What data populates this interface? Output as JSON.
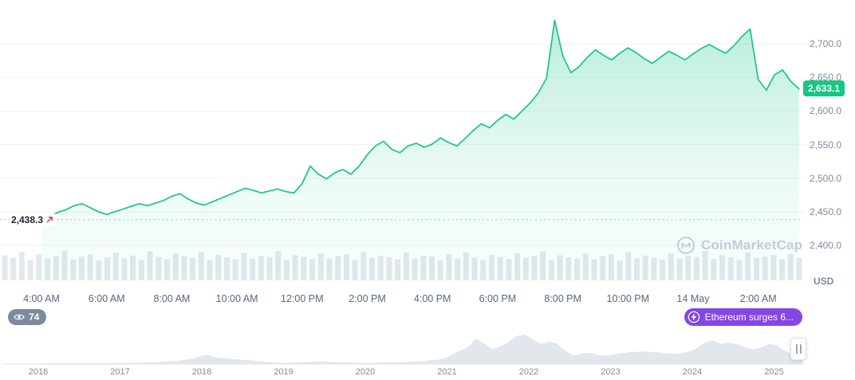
{
  "colors": {
    "green": "#16c784",
    "red": "#ea3943",
    "purple": "#8247e5",
    "grid": "#eff2f5",
    "dotted_line": "#b7c0cc",
    "volume": "#e3e8ee",
    "timeline_fill": "#e2e7ed",
    "watermark": "#c3cdd9"
  },
  "annotations": {
    "open_price_label": "2,438.3",
    "last_price_label": "2,633.1",
    "watermark_text": "CoinMarketCap",
    "annotation_count": "74",
    "news_badge_text": "Ethereum surges 6..."
  },
  "chart_data": [
    {
      "type": "area",
      "name": "eth-intraday-price",
      "unit": "USD",
      "grid": true,
      "legend": false,
      "ylim": [
        2390,
        2745
      ],
      "open": 2438.3,
      "last": 2633.1,
      "y_tick_labels": [
        "2,700.0",
        "2,650.0",
        "2,600.0",
        "2,550.0",
        "2,500.0",
        "2,450.0",
        "2,400.0"
      ],
      "x_tick_labels": [
        "4:00 AM",
        "6:00 AM",
        "8:00 AM",
        "10:00 AM",
        "12:00 PM",
        "2:00 PM",
        "4:00 PM",
        "6:00 PM",
        "8:00 PM",
        "10:00 PM",
        "14 May",
        "2:00 AM"
      ],
      "x_hours": [
        4,
        4.25,
        4.5,
        4.75,
        5,
        5.25,
        5.5,
        5.75,
        6,
        6.25,
        6.5,
        6.75,
        7,
        7.25,
        7.5,
        7.75,
        8,
        8.25,
        8.5,
        8.75,
        9,
        9.25,
        9.5,
        9.75,
        10,
        10.25,
        10.5,
        10.75,
        11,
        11.25,
        11.5,
        11.75,
        12,
        12.25,
        12.5,
        12.75,
        13,
        13.25,
        13.5,
        13.75,
        14,
        14.25,
        14.5,
        14.75,
        15,
        15.25,
        15.5,
        15.75,
        16,
        16.25,
        16.5,
        16.75,
        17,
        17.25,
        17.5,
        17.75,
        18,
        18.25,
        18.5,
        18.75,
        19,
        19.25,
        19.5,
        19.75,
        20,
        20.25,
        20.5,
        20.75,
        21,
        21.25,
        21.5,
        21.75,
        22,
        22.25,
        22.5,
        22.75,
        23,
        23.25,
        23.5,
        23.75,
        24,
        24.25,
        24.5,
        24.75,
        25,
        25.25,
        25.5,
        25.75,
        26,
        26.25,
        26.5,
        26.75,
        27,
        27.25
      ],
      "prices": [
        2438,
        2444,
        2449,
        2453,
        2459,
        2462,
        2456,
        2450,
        2446,
        2450,
        2454,
        2458,
        2462,
        2459,
        2463,
        2467,
        2473,
        2477,
        2469,
        2463,
        2460,
        2465,
        2470,
        2475,
        2480,
        2485,
        2482,
        2478,
        2481,
        2484,
        2480,
        2478,
        2492,
        2518,
        2506,
        2499,
        2508,
        2513,
        2506,
        2518,
        2535,
        2548,
        2555,
        2543,
        2538,
        2548,
        2552,
        2546,
        2551,
        2560,
        2553,
        2548,
        2559,
        2571,
        2581,
        2575,
        2586,
        2595,
        2588,
        2600,
        2612,
        2627,
        2649,
        2735,
        2682,
        2657,
        2666,
        2680,
        2691,
        2683,
        2676,
        2686,
        2694,
        2687,
        2678,
        2671,
        2680,
        2689,
        2683,
        2676,
        2685,
        2693,
        2699,
        2692,
        2686,
        2697,
        2711,
        2722,
        2647,
        2631,
        2654,
        2661,
        2644,
        2633
      ],
      "volume_norm": [
        0.72,
        0.65,
        0.8,
        0.58,
        0.75,
        0.62,
        0.7,
        0.85,
        0.6,
        0.68,
        0.74,
        0.57,
        0.66,
        0.79,
        0.63,
        0.71,
        0.59,
        0.83,
        0.67,
        0.61,
        0.76,
        0.69,
        0.64,
        0.81,
        0.58,
        0.73,
        0.66,
        0.6,
        0.78,
        0.62,
        0.7,
        0.65,
        0.84,
        0.59,
        0.72,
        0.67,
        0.61,
        0.77,
        0.63,
        0.69,
        0.74,
        0.58,
        0.82,
        0.64,
        0.7,
        0.66,
        0.6,
        0.79,
        0.62,
        0.71,
        0.68,
        0.57,
        0.75,
        0.63,
        0.8,
        0.65,
        0.59,
        0.73,
        0.67,
        0.61,
        0.78,
        0.64,
        0.7,
        0.83,
        0.58,
        0.72,
        0.66,
        0.62,
        0.76,
        0.6,
        0.69,
        0.74,
        0.57,
        0.81,
        0.63,
        0.71,
        0.65,
        0.59,
        0.77,
        0.62,
        0.7,
        0.67,
        0.84,
        0.61,
        0.73,
        0.66,
        0.58,
        0.79,
        0.64,
        0.68,
        0.72,
        0.6,
        0.75,
        0.65
      ]
    },
    {
      "type": "area",
      "name": "price-history-minimap",
      "x_tick_labels": [
        "2016",
        "2017",
        "2018",
        "2019",
        "2020",
        "2021",
        "2022",
        "2023",
        "2024",
        "2025"
      ],
      "points_year_value": [
        [
          2015.6,
          0.02
        ],
        [
          2016.0,
          0.02
        ],
        [
          2016.5,
          0.03
        ],
        [
          2017.0,
          0.03
        ],
        [
          2017.4,
          0.05
        ],
        [
          2017.7,
          0.09
        ],
        [
          2017.9,
          0.16
        ],
        [
          2018.05,
          0.28
        ],
        [
          2018.15,
          0.2
        ],
        [
          2018.3,
          0.16
        ],
        [
          2018.5,
          0.12
        ],
        [
          2018.7,
          0.08
        ],
        [
          2018.9,
          0.04
        ],
        [
          2019.1,
          0.04
        ],
        [
          2019.3,
          0.06
        ],
        [
          2019.5,
          0.07
        ],
        [
          2019.7,
          0.05
        ],
        [
          2019.9,
          0.04
        ],
        [
          2020.1,
          0.04
        ],
        [
          2020.3,
          0.05
        ],
        [
          2020.5,
          0.06
        ],
        [
          2020.7,
          0.08
        ],
        [
          2020.9,
          0.13
        ],
        [
          2021.0,
          0.2
        ],
        [
          2021.1,
          0.32
        ],
        [
          2021.25,
          0.48
        ],
        [
          2021.35,
          0.72
        ],
        [
          2021.45,
          0.6
        ],
        [
          2021.55,
          0.42
        ],
        [
          2021.65,
          0.5
        ],
        [
          2021.75,
          0.62
        ],
        [
          2021.85,
          0.8
        ],
        [
          2021.95,
          0.84
        ],
        [
          2022.05,
          0.7
        ],
        [
          2022.15,
          0.58
        ],
        [
          2022.25,
          0.64
        ],
        [
          2022.35,
          0.58
        ],
        [
          2022.45,
          0.38
        ],
        [
          2022.55,
          0.24
        ],
        [
          2022.65,
          0.3
        ],
        [
          2022.75,
          0.32
        ],
        [
          2022.85,
          0.26
        ],
        [
          2022.95,
          0.24
        ],
        [
          2023.1,
          0.3
        ],
        [
          2023.25,
          0.34
        ],
        [
          2023.4,
          0.36
        ],
        [
          2023.55,
          0.34
        ],
        [
          2023.7,
          0.3
        ],
        [
          2023.85,
          0.29
        ],
        [
          2023.95,
          0.36
        ],
        [
          2024.05,
          0.44
        ],
        [
          2024.15,
          0.62
        ],
        [
          2024.25,
          0.68
        ],
        [
          2024.35,
          0.58
        ],
        [
          2024.45,
          0.62
        ],
        [
          2024.55,
          0.56
        ],
        [
          2024.65,
          0.48
        ],
        [
          2024.75,
          0.42
        ],
        [
          2024.85,
          0.48
        ],
        [
          2024.95,
          0.58
        ],
        [
          2025.05,
          0.52
        ],
        [
          2025.1,
          0.42
        ],
        [
          2025.2,
          0.3
        ],
        [
          2025.3,
          0.42
        ],
        [
          2025.35,
          0.46
        ]
      ]
    }
  ]
}
